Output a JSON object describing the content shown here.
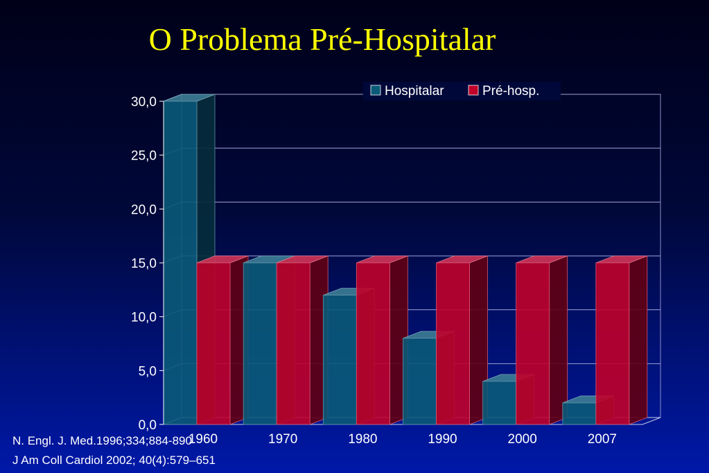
{
  "title": "O Problema Pré-Hospitalar",
  "references": [
    "N. Engl. J. Med.1996;334;884-890",
    "J Am Coll Cardiol 2002; 40(4):579–651"
  ],
  "colors": {
    "title": "#ffff00",
    "hospitalar": "#0a5a78",
    "pre_hosp": "#c0002a",
    "background_top": "#000018",
    "background_bottom": "#0018a8"
  },
  "chart_data": {
    "type": "bar",
    "title": "",
    "xlabel": "",
    "ylabel": "",
    "categories": [
      "1960",
      "1970",
      "1980",
      "1990",
      "2000",
      "2007"
    ],
    "series": [
      {
        "name": "Hospitalar",
        "values": [
          30,
          15,
          12,
          8,
          4,
          2
        ]
      },
      {
        "name": "Pré-hosp.",
        "values": [
          15,
          15,
          15,
          15,
          15,
          15
        ]
      }
    ],
    "ylim": [
      0,
      30
    ],
    "yticks": [
      "0,0",
      "5,0",
      "10,0",
      "15,0",
      "20,0",
      "25,0",
      "30,0"
    ],
    "grid": true,
    "legend": "top-right",
    "three_d": true
  }
}
